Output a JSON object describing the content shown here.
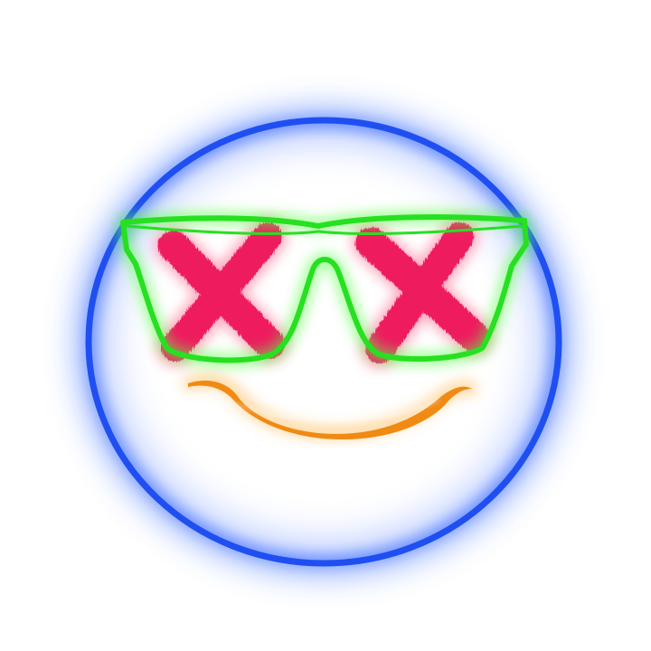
{
  "illustration": {
    "subject": "neon-smiley-with-sunglasses-x-eyes",
    "colors": {
      "background": "#ffffff",
      "face_ring": "#1f4ff0",
      "face_glow": "#3a6cff",
      "glasses": "#27e021",
      "glasses_glow": "#55ff44",
      "eyes": "#ee1f5e",
      "mouth": "#f08a12",
      "mouth_glow": "#ffb347"
    },
    "icons": {
      "face": "smiley-face-icon",
      "glasses": "sunglasses-icon",
      "eyes": "x-mark-icon",
      "mouth": "smile-icon"
    }
  }
}
